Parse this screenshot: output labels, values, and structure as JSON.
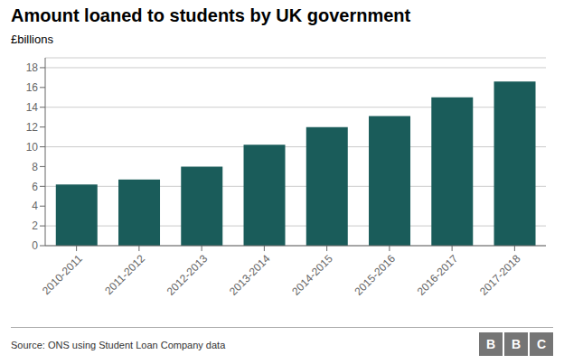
{
  "chart_data": {
    "type": "bar",
    "title": "Amount loaned to students by UK government",
    "ylabel": "£billions",
    "categories": [
      "2010-2011",
      "2011-2012",
      "2012-2013",
      "2013-2014",
      "2014-2015",
      "2015-2016",
      "2016-2017",
      "2017-2018"
    ],
    "values": [
      6.2,
      6.7,
      8.0,
      10.2,
      12.0,
      13.1,
      15.0,
      16.6
    ],
    "color": "#1a5c5a",
    "ylim": [
      0,
      19
    ],
    "yticks": [
      0,
      2,
      4,
      6,
      8,
      10,
      12,
      14,
      16,
      18
    ],
    "grid": true,
    "source": "Source: ONS using Student Loan Company data",
    "logo": [
      "B",
      "B",
      "C"
    ]
  }
}
